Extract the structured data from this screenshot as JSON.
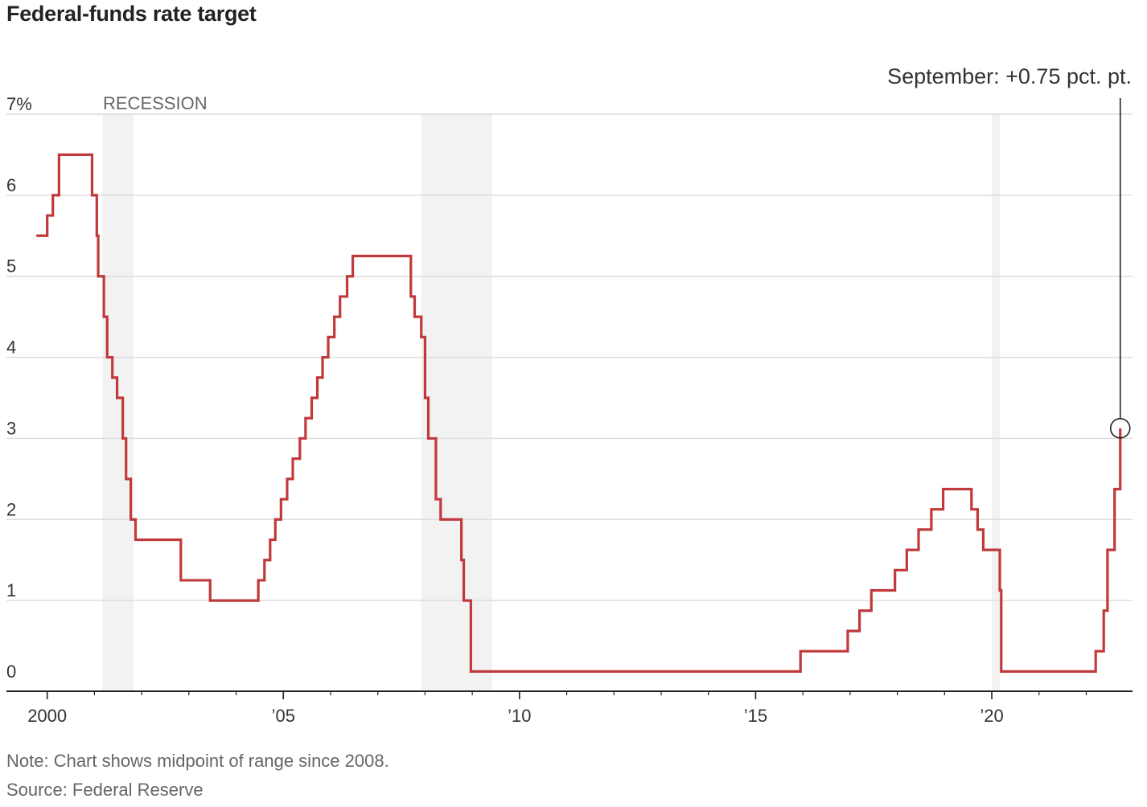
{
  "title": "Federal-funds rate target",
  "note": "Note: Chart shows midpoint of range since 2008.",
  "source": "Source: Federal Reserve",
  "colors": {
    "line": "#c0393b",
    "recession": "#f2f2f2",
    "grid": "#dddddd",
    "axis": "#222222"
  },
  "chart_data": {
    "type": "line",
    "step": true,
    "xlim": [
      1999.75,
      2022.98
    ],
    "ylim": [
      0,
      7
    ],
    "y_ticks": [
      {
        "value": 7,
        "label": "7%"
      },
      {
        "value": 6,
        "label": "6"
      },
      {
        "value": 5,
        "label": "5"
      },
      {
        "value": 4,
        "label": "4"
      },
      {
        "value": 3,
        "label": "3"
      },
      {
        "value": 2,
        "label": "2"
      },
      {
        "value": 1,
        "label": "1"
      },
      {
        "value": 0,
        "label": "0"
      }
    ],
    "x_ticks": [
      {
        "value": 2000,
        "label": "2000"
      },
      {
        "value": 2005,
        "label": "’05"
      },
      {
        "value": 2010,
        "label": "’10"
      },
      {
        "value": 2015,
        "label": "’15"
      },
      {
        "value": 2020,
        "label": "’20"
      }
    ],
    "recession_label": "RECESSION",
    "recessions": [
      [
        2001.17,
        2001.83
      ],
      [
        2007.92,
        2009.42
      ],
      [
        2020.0,
        2020.17
      ]
    ],
    "annotation": {
      "text": "September: +0.75 pct. pt.",
      "x": 2022.72,
      "y": 3.125
    },
    "series": [
      {
        "x": [
          1999.77,
          2000.0,
          2000.12,
          2000.25,
          2000.38,
          2000.95,
          2001.05,
          2001.08,
          2001.2,
          2001.27,
          2001.38,
          2001.48,
          2001.6,
          2001.67,
          2001.72,
          2001.77,
          2001.87,
          2001.95,
          2002.83,
          2003.45,
          2004.47,
          2004.6,
          2004.72,
          2004.83,
          2004.95,
          2005.08,
          2005.2,
          2005.35,
          2005.47,
          2005.6,
          2005.72,
          2005.83,
          2005.95,
          2006.08,
          2006.2,
          2006.35,
          2006.47,
          2007.7,
          2007.78,
          2007.92,
          2008.0,
          2008.07,
          2008.08,
          2008.23,
          2008.33,
          2008.77,
          2008.82,
          2008.97,
          2015.95,
          2016.95,
          2017.2,
          2017.45,
          2017.95,
          2018.2,
          2018.45,
          2018.72,
          2018.97,
          2019.57,
          2019.7,
          2019.82,
          2020.17,
          2020.2,
          2022.2,
          2022.37,
          2022.45,
          2022.6,
          2022.72,
          2022.72
        ],
        "y": [
          5.5,
          5.75,
          6.0,
          6.5,
          6.5,
          6.0,
          5.5,
          5.0,
          4.5,
          4.0,
          3.75,
          3.5,
          3.0,
          2.5,
          2.5,
          2.0,
          1.75,
          1.75,
          1.25,
          1.0,
          1.25,
          1.5,
          1.75,
          2.0,
          2.25,
          2.5,
          2.75,
          3.0,
          3.25,
          3.5,
          3.75,
          4.0,
          4.25,
          4.5,
          4.75,
          5.0,
          5.25,
          4.75,
          4.5,
          4.25,
          3.5,
          3.0,
          3.0,
          2.25,
          2.0,
          1.5,
          1.0,
          0.125,
          0.375,
          0.625,
          0.875,
          1.125,
          1.375,
          1.625,
          1.875,
          2.125,
          2.375,
          2.125,
          1.875,
          1.625,
          1.125,
          0.125,
          0.375,
          0.875,
          1.625,
          2.375,
          3.125,
          3.125
        ]
      }
    ]
  }
}
